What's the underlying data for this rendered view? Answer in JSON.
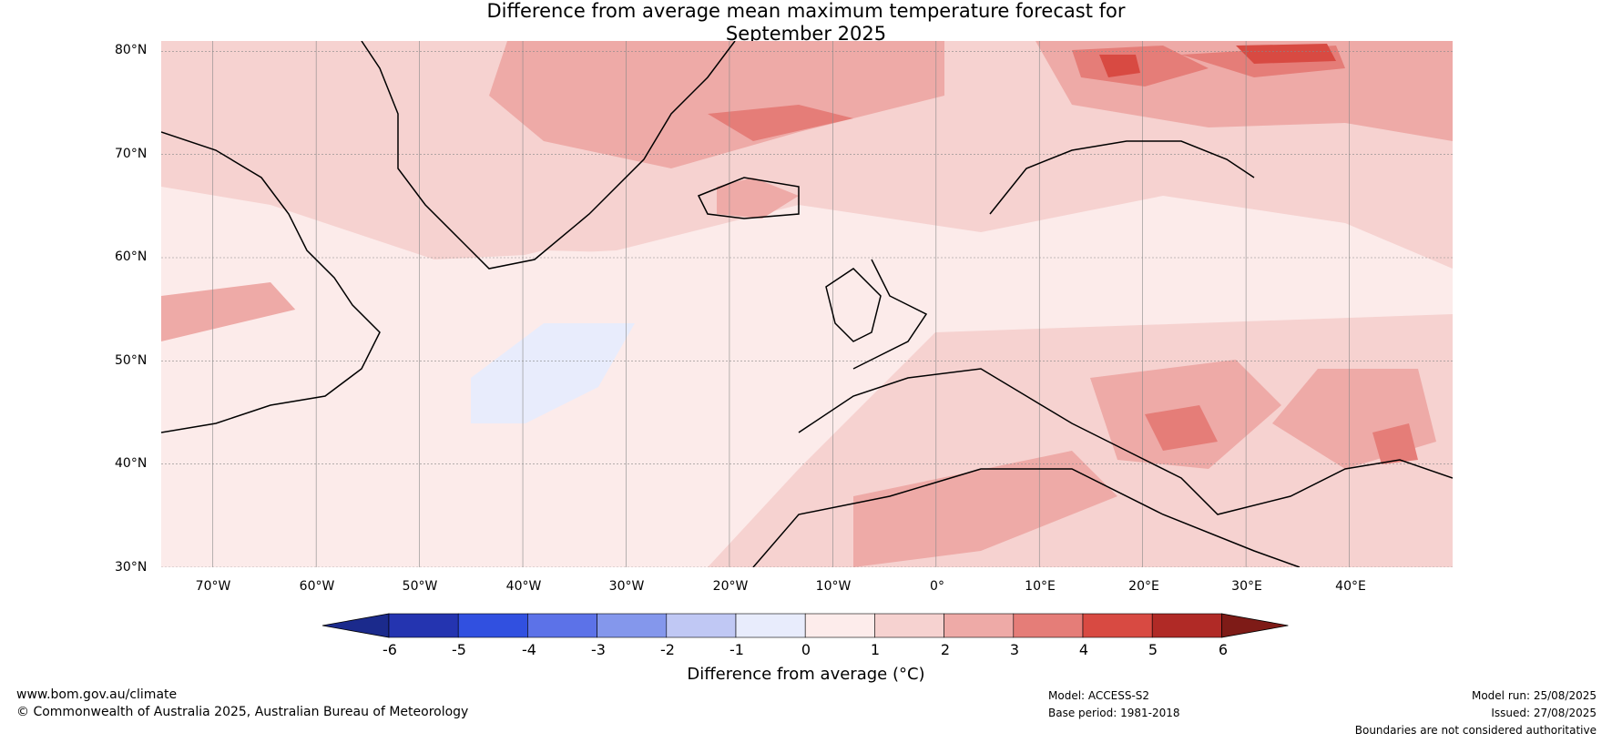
{
  "title_line1": "Difference from average mean maximum temperature forecast for",
  "title_line2": "September 2025",
  "map": {
    "lat_labels": [
      "80°N",
      "70°N",
      "60°N",
      "50°N",
      "40°N",
      "30°N"
    ],
    "lon_labels": [
      "70°W",
      "60°W",
      "50°W",
      "40°W",
      "30°W",
      "20°W",
      "10°W",
      "0°",
      "10°E",
      "20°E",
      "30°E",
      "40°E"
    ],
    "extent": {
      "lon_min": -75,
      "lon_max": 50,
      "lat_min": 30,
      "lat_max": 81
    }
  },
  "colorbar": {
    "ticks": [
      "-6",
      "-5",
      "-4",
      "-3",
      "-2",
      "-1",
      "0",
      "1",
      "2",
      "3",
      "4",
      "5",
      "6"
    ],
    "colors": [
      "#1b2a8c",
      "#2434b0",
      "#3150e0",
      "#5c72e8",
      "#8497ec",
      "#c0c8f4",
      "#e8ecfc",
      "#fdeceb",
      "#f6d2d0",
      "#eeaaa7",
      "#e57d78",
      "#d84a42",
      "#b02a26",
      "#7e1b17"
    ],
    "label": "Difference from average (°C)"
  },
  "footer": {
    "website": "www.bom.gov.au/climate",
    "copyright": "© Commonwealth of Australia 2025, Australian Bureau of Meteorology",
    "model": "Model: ACCESS-S2",
    "base_period": "Base period: 1981-2018",
    "model_run": "Model run: 25/08/2025",
    "issued": "Issued: 27/08/2025",
    "boundaries": "Boundaries are not considered authoritative"
  }
}
